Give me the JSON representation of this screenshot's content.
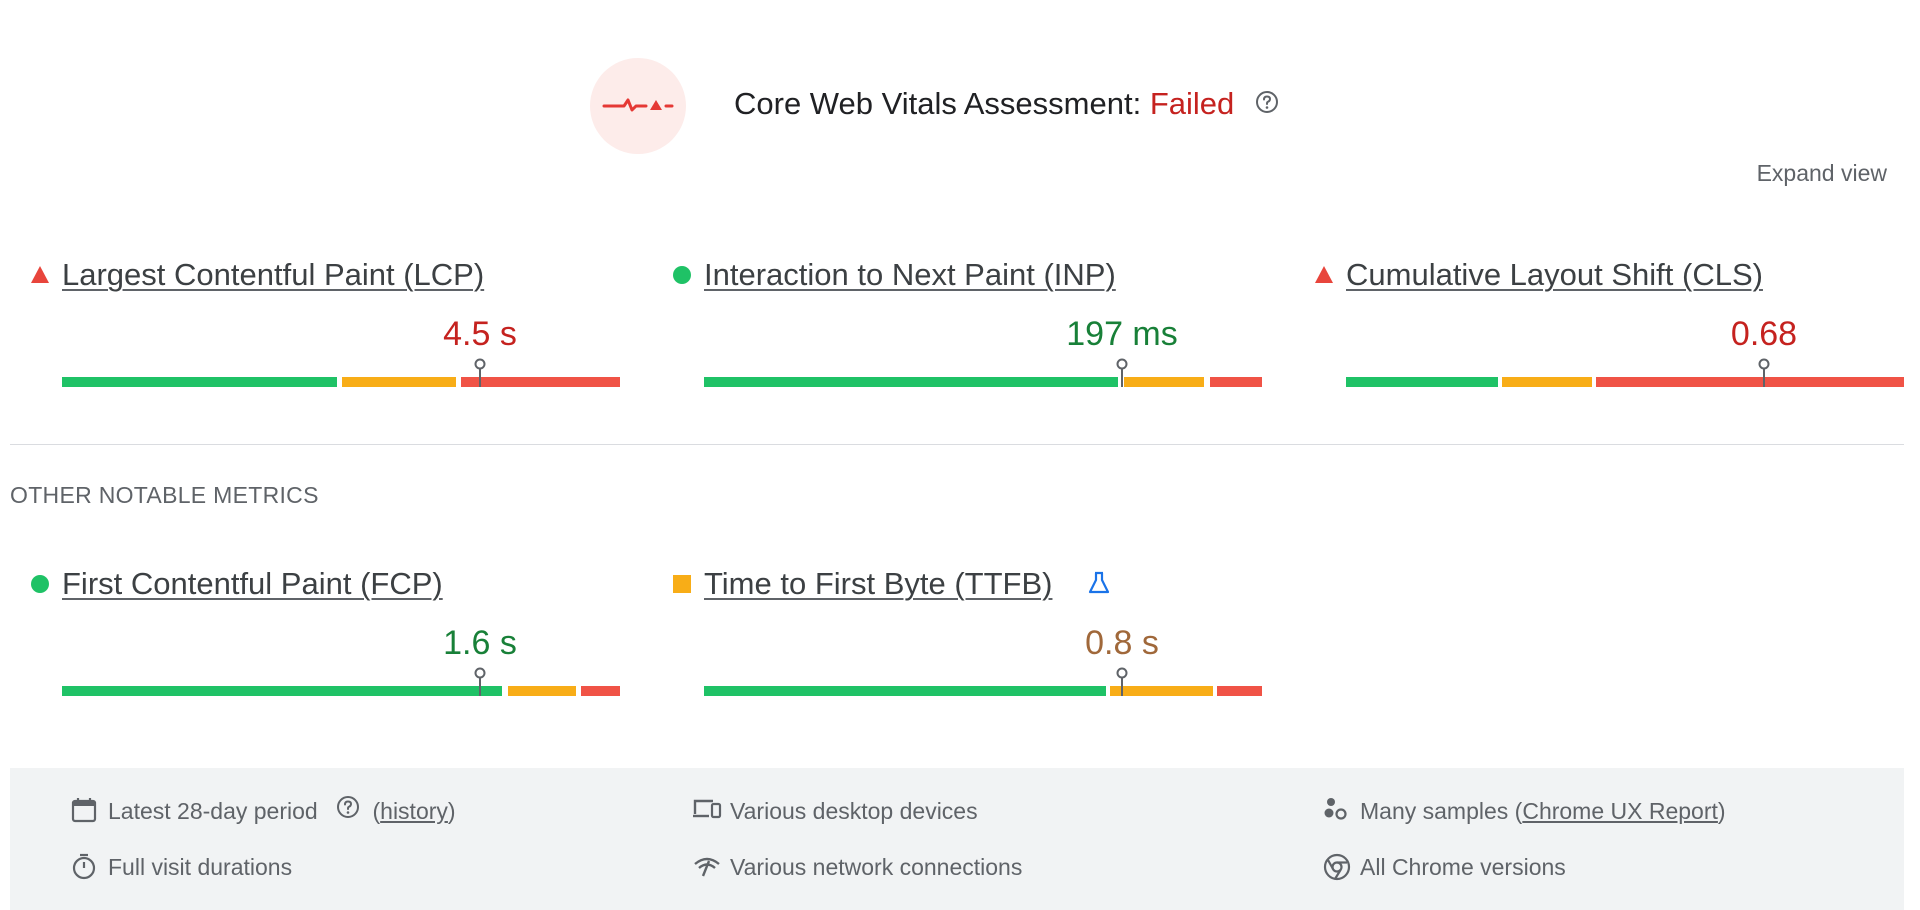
{
  "header": {
    "title_prefix": "Core Web Vitals Assessment: ",
    "status": "Failed",
    "status_color": "#c5221f",
    "help_icon": "help-circle-icon",
    "badge_icon": "failed-pulse-icon"
  },
  "expand_view_label": "Expand view",
  "core_metrics": [
    {
      "name": "Largest Contentful Paint (LCP)",
      "rating": "poor",
      "indicator_icon": "red-triangle-icon",
      "value": "4.5 s",
      "value_color": "#c5221f",
      "distribution": {
        "good": 0.49,
        "needs_improvement": 0.21,
        "poor": 0.3
      },
      "marker_position": 0.75
    },
    {
      "name": "Interaction to Next Paint (INP)",
      "rating": "good",
      "indicator_icon": "green-circle-icon",
      "value": "197 ms",
      "value_color": "#188038",
      "distribution": {
        "good": 0.75,
        "needs_improvement": 0.15,
        "poor": 0.1
      },
      "marker_position": 0.75
    },
    {
      "name": "Cumulative Layout Shift (CLS)",
      "rating": "poor",
      "indicator_icon": "red-triangle-icon",
      "value": "0.68",
      "value_color": "#c5221f",
      "distribution": {
        "good": 0.27,
        "needs_improvement": 0.17,
        "poor": 0.56
      },
      "marker_position": 0.75
    }
  ],
  "other_section_label": "OTHER NOTABLE METRICS",
  "other_metrics": [
    {
      "name": "First Contentful Paint (FCP)",
      "rating": "good",
      "indicator_icon": "green-circle-icon",
      "value": "1.6 s",
      "value_color": "#188038",
      "distribution": {
        "good": 0.79,
        "needs_improvement": 0.13,
        "poor": 0.08
      },
      "marker_position": 0.75
    },
    {
      "name": "Time to First Byte (TTFB)",
      "rating": "needs-improvement",
      "indicator_icon": "orange-square-icon",
      "experimental_icon": "flask-icon",
      "value": "0.8 s",
      "value_color": "#a0683a",
      "distribution": {
        "good": 0.72,
        "needs_improvement": 0.2,
        "poor": 0.08
      },
      "marker_position": 0.75
    }
  ],
  "colors": {
    "good": "#1fc266",
    "needs_improvement": "#f8ad17",
    "poor": "#f05346"
  },
  "footer": {
    "period": {
      "text": "Latest 28-day period",
      "history_label": "history",
      "icon": "calendar-icon"
    },
    "devices": {
      "text": "Various desktop devices",
      "icon": "devices-icon"
    },
    "samples": {
      "text": "Many samples (",
      "link_label": "Chrome UX Report",
      "text_end": ")",
      "icon": "samples-icon"
    },
    "visits": {
      "text": "Full visit durations",
      "icon": "timer-icon"
    },
    "network": {
      "text": "Various network connections",
      "icon": "network-icon"
    },
    "versions": {
      "text": "All Chrome versions",
      "icon": "chrome-icon"
    }
  }
}
